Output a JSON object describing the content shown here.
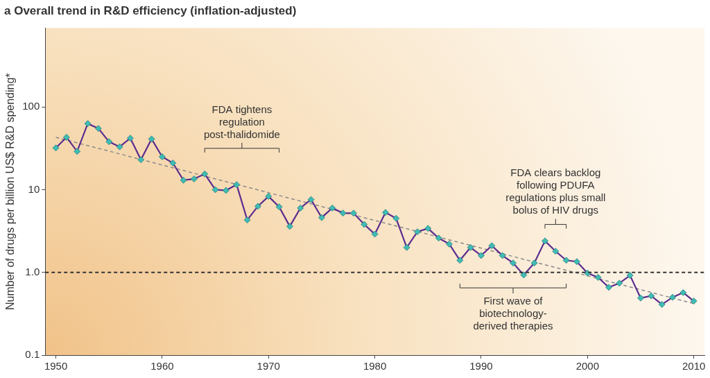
{
  "chart_data": {
    "type": "line",
    "title": "a Overall trend in R&D efficiency (inflation-adjusted)",
    "y_label": "Number of drugs per billion US$ R&D spending*",
    "log": "y",
    "grid": false,
    "x": [
      1950,
      1951,
      1952,
      1953,
      1954,
      1955,
      1956,
      1957,
      1958,
      1959,
      1960,
      1961,
      1962,
      1963,
      1964,
      1965,
      1966,
      1967,
      1968,
      1969,
      1970,
      1971,
      1972,
      1973,
      1974,
      1975,
      1976,
      1977,
      1978,
      1979,
      1980,
      1981,
      1982,
      1983,
      1984,
      1985,
      1986,
      1987,
      1988,
      1989,
      1990,
      1991,
      1992,
      1993,
      1994,
      1995,
      1996,
      1997,
      1998,
      1999,
      2000,
      2001,
      2002,
      2003,
      2004,
      2005,
      2006,
      2007,
      2008,
      2009,
      2010
    ],
    "series": [
      {
        "color": "#5b2d8e",
        "marker": "diamond",
        "line_style": "solid",
        "values": [
          32,
          43,
          29,
          63,
          55,
          38,
          33,
          42,
          23,
          41,
          25,
          21,
          13,
          13.5,
          15.5,
          10,
          9.8,
          11.5,
          4.3,
          6.3,
          8.3,
          6.2,
          3.6,
          6.0,
          7.6,
          4.6,
          6.0,
          5.2,
          5.2,
          3.8,
          2.9,
          5.3,
          4.5,
          2.0,
          3.1,
          3.4,
          2.6,
          2.2,
          1.4,
          2.0,
          1.6,
          2.1,
          1.6,
          1.3,
          0.93,
          1.3,
          2.4,
          1.8,
          1.4,
          1.35,
          0.98,
          0.87,
          0.66,
          0.74,
          0.92,
          0.49,
          0.52,
          0.41,
          0.5,
          0.57,
          0.45
        ]
      }
    ],
    "trend": {
      "x": [
        1950,
        2010
      ],
      "values": [
        43,
        0.42
      ],
      "color": "#8a8a8a",
      "line_style": "dashed"
    },
    "reference_line": {
      "value": 1,
      "color": "#333333",
      "line_style": "dashed"
    },
    "xlim": [
      1949,
      2011
    ],
    "xticks": [
      1950,
      1960,
      1970,
      1980,
      1990,
      2000,
      2010
    ],
    "ylim": [
      0.1,
      900
    ],
    "yticks": [
      0.1,
      {
        "value": 1,
        "label": "1.0"
      },
      10,
      100
    ],
    "annotations": [
      {
        "lines": [
          "FDA tightens",
          "regulation",
          "post-thalidomide"
        ],
        "x_range": [
          1964,
          1971
        ],
        "y": 31.6,
        "position": "above"
      },
      {
        "lines": [
          "FDA clears backlog",
          "following PDUFA",
          "regulations plus small",
          "bolus of HIV drugs"
        ],
        "x_range": [
          1996,
          1998
        ],
        "y": 3.8,
        "position": "above"
      },
      {
        "lines": [
          "First wave of",
          "biotechnology-",
          "derived therapies"
        ],
        "x_range": [
          1988,
          1998
        ],
        "y": 0.65,
        "position": "below"
      }
    ]
  }
}
